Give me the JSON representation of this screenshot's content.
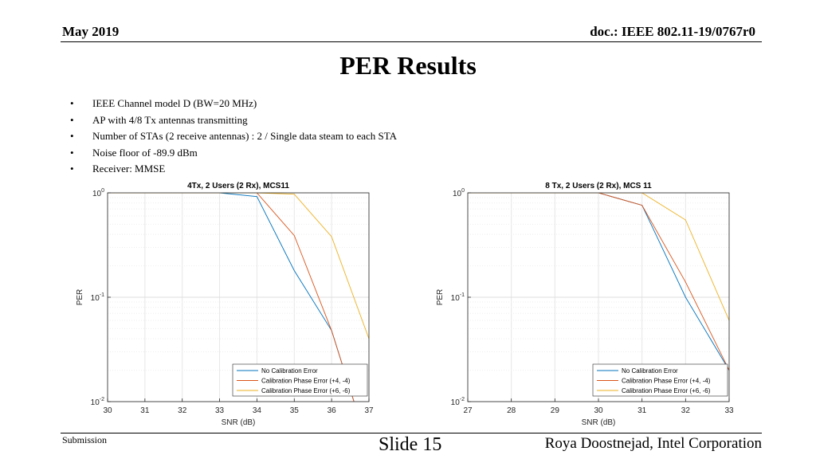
{
  "header": {
    "date": "May 2019",
    "doc": "doc.: IEEE 802.11-19/0767r0"
  },
  "title": "PER Results",
  "bullets": [
    "IEEE Channel model D (BW=20 MHz)",
    "AP with 4/8 Tx antennas transmitting",
    "Number of STAs (2 receive antennas) : 2 / Single data steam to each STA",
    "Noise floor of -89.9 dBm",
    "Receiver: MMSE"
  ],
  "footer": {
    "left": "Submission",
    "center": "Slide 15",
    "right": "Roya Doostnejad, Intel Corporation"
  },
  "colors": {
    "blue": "#0072BD",
    "red": "#D95319",
    "yellow": "#EDB120"
  },
  "chart_data": [
    {
      "type": "line",
      "title": "4Tx, 2 Users (2 Rx), MCS11",
      "xlabel": "SNR (dB)",
      "ylabel": "PER",
      "yscale": "log",
      "xlim": [
        30,
        37
      ],
      "ylim": [
        0.01,
        1
      ],
      "xticks": [
        30,
        31,
        32,
        33,
        34,
        35,
        36,
        37
      ],
      "yticks": [
        {
          "base": "10",
          "exp": "-2",
          "value": 0.01
        },
        {
          "base": "10",
          "exp": "-1",
          "value": 0.1
        },
        {
          "base": "10",
          "exp": "0",
          "value": 1
        }
      ],
      "grid": true,
      "legend_position": "bottom-right",
      "x": [
        30,
        31,
        32,
        33,
        34,
        35,
        36,
        37
      ],
      "series": [
        {
          "name": "No Calibration Error",
          "color": "#0072BD",
          "values": [
            1,
            1,
            1,
            1,
            0.92,
            0.18,
            0.048,
            0.0035
          ]
        },
        {
          "name": "Calibration Phase Error (+4, -4)",
          "color": "#D95319",
          "values": [
            1,
            1,
            1,
            1,
            1,
            0.39,
            0.048,
            0.0035
          ]
        },
        {
          "name": "Calibration Phase Error (+6, -6)",
          "color": "#EDB120",
          "values": [
            1,
            1,
            1,
            1,
            1,
            0.97,
            0.38,
            0.04
          ]
        }
      ]
    },
    {
      "type": "line",
      "title": "8 Tx, 2 Users (2 Rx), MCS 11",
      "xlabel": "SNR (dB)",
      "ylabel": "PER",
      "yscale": "log",
      "xlim": [
        27,
        33
      ],
      "ylim": [
        0.01,
        1
      ],
      "xticks": [
        27,
        28,
        29,
        30,
        31,
        32,
        33
      ],
      "yticks": [
        {
          "base": "10",
          "exp": "-2",
          "value": 0.01
        },
        {
          "base": "10",
          "exp": "-1",
          "value": 0.1
        },
        {
          "base": "10",
          "exp": "0",
          "value": 1
        }
      ],
      "grid": true,
      "legend_position": "bottom-right",
      "x": [
        27,
        28,
        29,
        30,
        31,
        32,
        33
      ],
      "series": [
        {
          "name": "No Calibration Error",
          "color": "#0072BD",
          "values": [
            1,
            1,
            1,
            1,
            0.76,
            0.1,
            0.02
          ]
        },
        {
          "name": "Calibration Phase Error (+4, -4)",
          "color": "#D95319",
          "values": [
            1,
            1,
            1,
            1,
            0.76,
            0.14,
            0.02
          ]
        },
        {
          "name": "Calibration Phase Error (+6, -6)",
          "color": "#EDB120",
          "values": [
            1,
            1,
            1,
            1,
            1,
            0.55,
            0.06
          ]
        }
      ]
    }
  ]
}
